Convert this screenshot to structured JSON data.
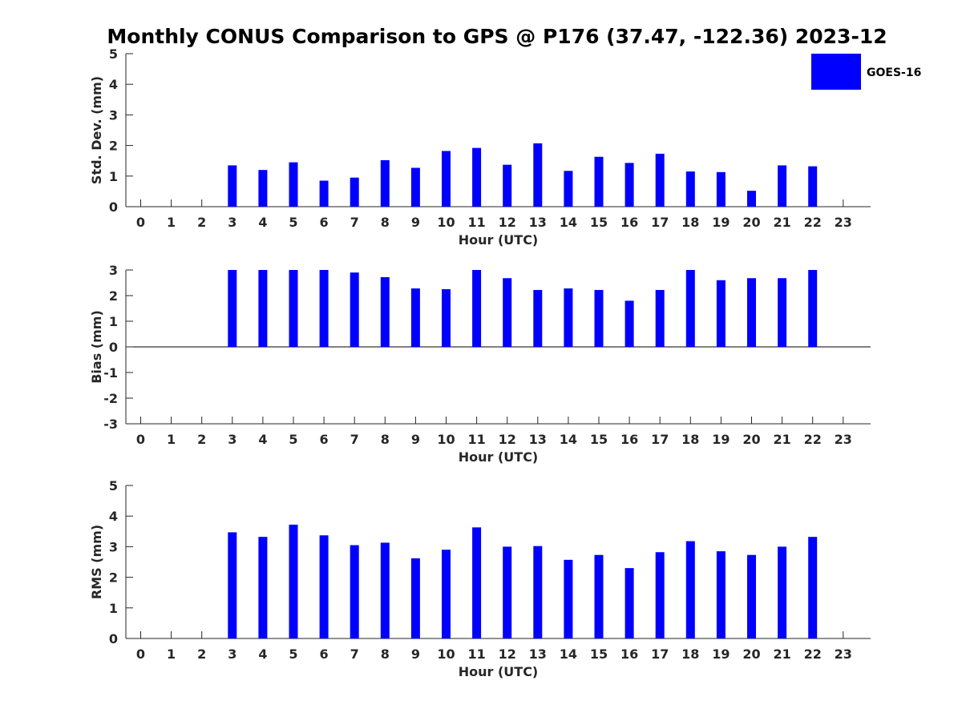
{
  "title": "Monthly CONUS Comparison to GPS @ P176 (37.47, -122.36) 2023-12",
  "legend": {
    "label": "GOES-16",
    "placement": "top-right"
  },
  "colors": {
    "bar": "#0000ff",
    "axis": "#262626",
    "background": "#ffffff"
  },
  "chart_data": [
    {
      "type": "bar",
      "xlabel": "Hour (UTC)",
      "ylabel": "Std. Dev. (mm)",
      "ylim": [
        0,
        5
      ],
      "yticks": [
        "0",
        "1",
        "2",
        "3",
        "4",
        "5"
      ],
      "categories": [
        "0",
        "1",
        "2",
        "3",
        "4",
        "5",
        "6",
        "7",
        "8",
        "9",
        "10",
        "11",
        "12",
        "13",
        "14",
        "15",
        "16",
        "17",
        "18",
        "19",
        "20",
        "21",
        "22",
        "23"
      ],
      "series": [
        {
          "name": "GOES-16",
          "values": [
            null,
            null,
            null,
            1.35,
            1.2,
            1.45,
            0.85,
            0.95,
            1.52,
            1.27,
            1.82,
            1.92,
            1.37,
            2.07,
            1.17,
            1.63,
            1.43,
            1.73,
            1.15,
            1.13,
            0.52,
            1.35,
            1.32,
            null
          ]
        }
      ],
      "grid": false
    },
    {
      "type": "bar",
      "xlabel": "Hour (UTC)",
      "ylabel": "Bias (mm)",
      "ylim": [
        -3,
        3
      ],
      "yticks": [
        "-3",
        "-2",
        "-1",
        "0",
        "1",
        "2",
        "3"
      ],
      "categories": [
        "0",
        "1",
        "2",
        "3",
        "4",
        "5",
        "6",
        "7",
        "8",
        "9",
        "10",
        "11",
        "12",
        "13",
        "14",
        "15",
        "16",
        "17",
        "18",
        "19",
        "20",
        "21",
        "22",
        "23"
      ],
      "series": [
        {
          "name": "GOES-16",
          "values": [
            null,
            null,
            null,
            3.0,
            3.0,
            3.0,
            3.0,
            2.9,
            2.72,
            2.28,
            2.25,
            3.0,
            2.68,
            2.22,
            2.28,
            2.22,
            1.8,
            2.22,
            3.0,
            2.6,
            2.68,
            2.68,
            3.0,
            null
          ]
        }
      ],
      "grid": false
    },
    {
      "type": "bar",
      "xlabel": "Hour (UTC)",
      "ylabel": "RMS (mm)",
      "ylim": [
        0,
        5
      ],
      "yticks": [
        "0",
        "1",
        "2",
        "3",
        "4",
        "5"
      ],
      "categories": [
        "0",
        "1",
        "2",
        "3",
        "4",
        "5",
        "6",
        "7",
        "8",
        "9",
        "10",
        "11",
        "12",
        "13",
        "14",
        "15",
        "16",
        "17",
        "18",
        "19",
        "20",
        "21",
        "22",
        "23"
      ],
      "series": [
        {
          "name": "GOES-16",
          "values": [
            null,
            null,
            null,
            3.47,
            3.32,
            3.72,
            3.37,
            3.05,
            3.13,
            2.62,
            2.9,
            3.63,
            3.0,
            3.02,
            2.57,
            2.73,
            2.3,
            2.82,
            3.18,
            2.85,
            2.73,
            3.0,
            3.32,
            null
          ]
        }
      ],
      "grid": false
    }
  ]
}
